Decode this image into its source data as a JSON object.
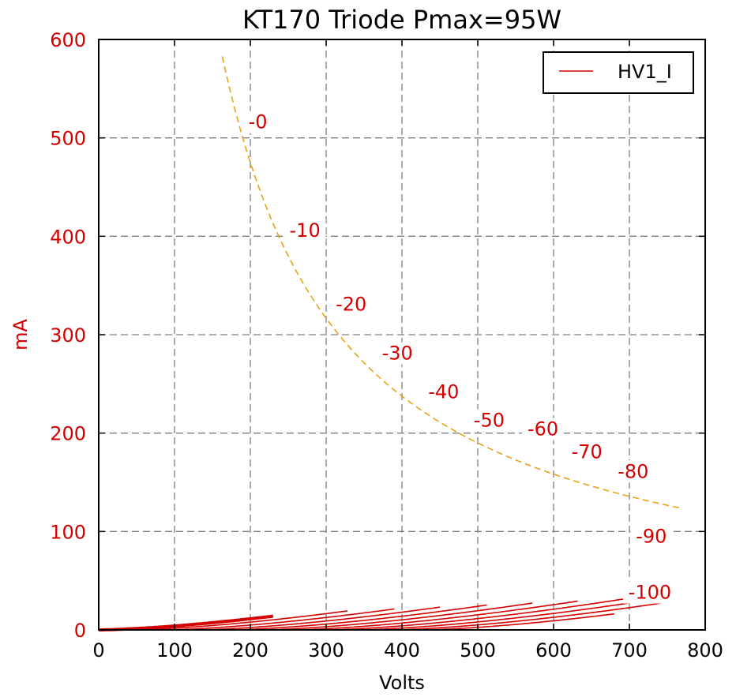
{
  "chart_data": {
    "type": "line",
    "title": "KT170 Triode Pmax=95W",
    "xlabel": "Volts",
    "ylabel": "mA",
    "xlim": [
      0,
      800
    ],
    "ylim": [
      0,
      600
    ],
    "x_ticks": [
      "0",
      "100",
      "200",
      "300",
      "400",
      "500",
      "600",
      "700",
      "800"
    ],
    "y_ticks": [
      "0",
      "100",
      "200",
      "300",
      "400",
      "500",
      "600"
    ],
    "grid": true,
    "legend": {
      "placement": "top-right",
      "entries": [
        "HV1_I"
      ]
    },
    "colors": {
      "curves": "#d40000",
      "pmax": "#e8a317",
      "axis_text": "#d40000"
    },
    "curve_model": {
      "exponent": 1.5,
      "k": 0.004,
      "mu": 4.25
    },
    "series": [
      {
        "grid_volts": 0,
        "label": "-0",
        "x_end": 230,
        "emphasis": true
      },
      {
        "grid_volts": -10,
        "label": "-10",
        "x_end": 329
      },
      {
        "grid_volts": -20,
        "label": "-20",
        "x_end": 390
      },
      {
        "grid_volts": -30,
        "label": "-30",
        "x_end": 451
      },
      {
        "grid_volts": -40,
        "label": "-40",
        "x_end": 512
      },
      {
        "grid_volts": -50,
        "label": "-50",
        "x_end": 572
      },
      {
        "grid_volts": -60,
        "label": "-60",
        "x_end": 633
      },
      {
        "grid_volts": -70,
        "label": "-70",
        "x_end": 694
      },
      {
        "grid_volts": -80,
        "label": "-80",
        "x_end": 745
      },
      {
        "grid_volts": -90,
        "label": "-90",
        "x_end": 745
      },
      {
        "grid_volts": -100,
        "label": "-100",
        "x_end": 680
      }
    ],
    "label_positions": [
      {
        "label": "-0",
        "x": 210,
        "y": 512
      },
      {
        "label": "-10",
        "x": 272,
        "y": 402
      },
      {
        "label": "-20",
        "x": 333,
        "y": 327
      },
      {
        "label": "-30",
        "x": 394,
        "y": 277
      },
      {
        "label": "-40",
        "x": 455,
        "y": 238
      },
      {
        "label": "-50",
        "x": 515,
        "y": 209
      },
      {
        "label": "-60",
        "x": 586,
        "y": 200
      },
      {
        "label": "-70",
        "x": 644,
        "y": 177
      },
      {
        "label": "-80",
        "x": 705,
        "y": 157
      },
      {
        "label": "-90",
        "x": 729,
        "y": 91
      },
      {
        "label": "-100",
        "x": 727,
        "y": 34
      }
    ],
    "pmax_curve": {
      "watts": 95,
      "x_range": [
        163,
        770
      ]
    }
  }
}
